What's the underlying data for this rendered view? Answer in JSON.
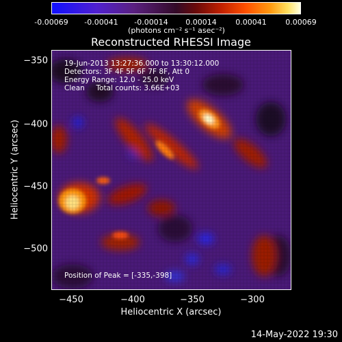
{
  "colorbar": {
    "ticks": [
      "-0.00069",
      "-0.00041",
      "-0.00014",
      "0.00014",
      "0.00041",
      "0.00069"
    ],
    "unit": "(photons cm⁻² s⁻¹ asec⁻²)"
  },
  "title": "Reconstructed RHESSI Image",
  "info": {
    "time": "19-Jun-2013 13:27:36.000 to 13:30:12.000",
    "detectors": "Detectors: 3F 4F 5F 6F 7F 8F, Att 0",
    "energy": "Energy Range: 12.0 - 25.0 keV",
    "clean": "Clean     Total counts: 3.66E+03",
    "peak": "Position of Peak = [-335,-398]"
  },
  "axes": {
    "x_label": "Heliocentric X (arcsec)",
    "y_label": "Heliocentric Y (arcsec)",
    "x_ticks": [
      "−450",
      "−400",
      "−350",
      "−300"
    ],
    "y_ticks": [
      "−350",
      "−400",
      "−450",
      "−500"
    ]
  },
  "datestamp": "14-May-2022 19:30"
}
